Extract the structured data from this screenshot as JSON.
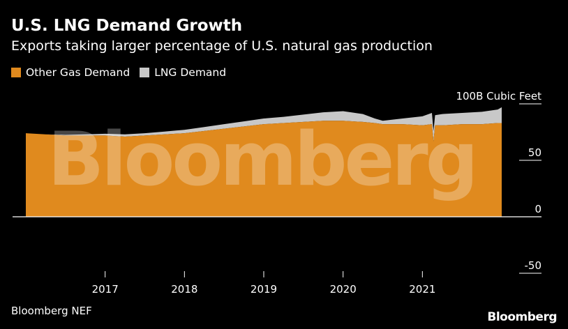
{
  "title": "U.S. LNG Demand Growth",
  "subtitle": "Exports taking larger percentage of U.S. natural gas production",
  "source": "Bloomberg NEF",
  "brand": "Bloomberg",
  "watermark": "Bloomberg",
  "colors": {
    "background": "#000000",
    "other_gas": "#e08a1e",
    "lng": "#c8c8c8",
    "text": "#ffffff"
  },
  "chart_data": {
    "type": "area",
    "stacked": true,
    "ylabel": "100B Cubic Feet",
    "ylim": [
      -50,
      100
    ],
    "yticks": [
      -50,
      0,
      50,
      100
    ],
    "ytick_labels": [
      "-50",
      "0",
      "50",
      "100B Cubic Feet"
    ],
    "xlim": [
      2016.0,
      2022.0
    ],
    "xticks": [
      2017,
      2018,
      2019,
      2020,
      2021
    ],
    "xtick_labels": [
      "2017",
      "2018",
      "2019",
      "2020",
      "2021"
    ],
    "legend_position": "top-left",
    "x": [
      2016.0,
      2016.25,
      2016.5,
      2016.75,
      2017.0,
      2017.25,
      2017.5,
      2017.75,
      2018.0,
      2018.25,
      2018.5,
      2018.75,
      2019.0,
      2019.25,
      2019.5,
      2019.75,
      2020.0,
      2020.25,
      2020.4,
      2020.5,
      2020.75,
      2021.0,
      2021.12,
      2021.14,
      2021.16,
      2021.25,
      2021.5,
      2021.75,
      2021.95,
      2022.0
    ],
    "series": [
      {
        "name": "Other Gas Demand",
        "values": [
          74,
          73,
          72,
          72,
          72,
          71,
          72,
          73,
          74,
          76,
          78,
          80,
          82,
          83,
          84,
          85,
          85,
          84,
          83,
          82,
          82,
          81,
          82,
          67,
          81,
          81,
          82,
          82,
          83,
          83
        ]
      },
      {
        "name": "LNG Demand",
        "values": [
          0,
          0,
          0.5,
          1,
          1.5,
          2,
          2,
          2.5,
          3,
          3.5,
          4,
          4.5,
          5,
          5.5,
          6.5,
          7.5,
          8.5,
          7,
          4,
          3,
          5,
          8,
          10,
          9,
          9,
          10,
          10,
          11,
          12,
          14
        ]
      }
    ]
  }
}
